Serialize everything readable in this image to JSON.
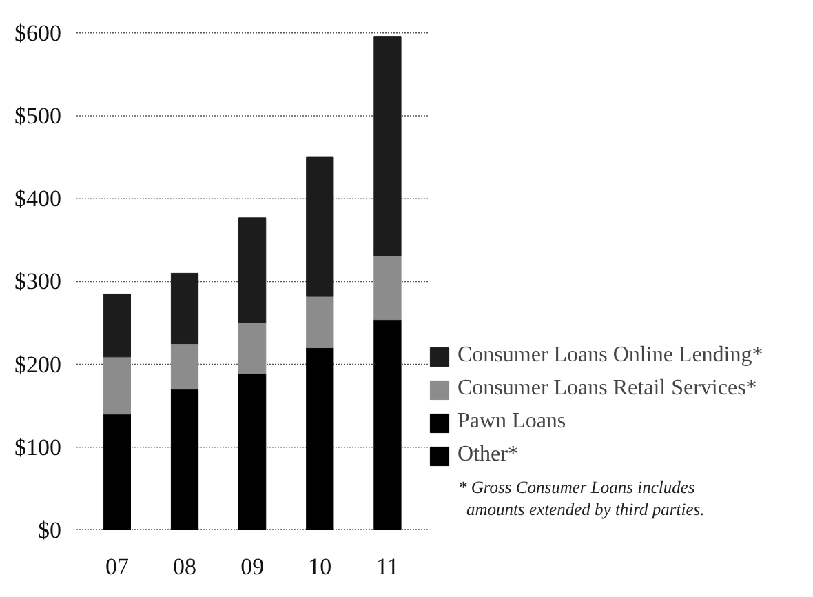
{
  "chart_data": {
    "type": "bar",
    "stacked": true,
    "categories": [
      "07",
      "08",
      "09",
      "10",
      "11"
    ],
    "series": [
      {
        "name": "Other*",
        "color": "#000000",
        "values": [
          null,
          null,
          null,
          null,
          null
        ]
      },
      {
        "name": "Pawn Loans",
        "color": "#000000",
        "values": [
          140,
          170,
          189,
          220,
          254
        ]
      },
      {
        "name": "Consumer Loans Retail Services*",
        "color": "#8c8c8c",
        "values": [
          69,
          55,
          61,
          62,
          77
        ]
      },
      {
        "name": "Consumer Loans Online Lending*",
        "color": "#1c1c1c",
        "values": [
          76,
          85,
          127,
          168,
          265
        ]
      }
    ],
    "ylim": [
      0,
      600
    ],
    "yticks": [
      {
        "value": 0,
        "label": "$0"
      },
      {
        "value": 100,
        "label": "$100"
      },
      {
        "value": 200,
        "label": "$200"
      },
      {
        "value": 300,
        "label": "$300"
      },
      {
        "value": 400,
        "label": "$400"
      },
      {
        "value": 500,
        "label": "$500"
      },
      {
        "value": 600,
        "label": "$600"
      }
    ],
    "grid": "y",
    "legend": "bottom right",
    "annotations": [
      "* Gross Consumer Loans includes\namounts extended by third parties."
    ]
  }
}
